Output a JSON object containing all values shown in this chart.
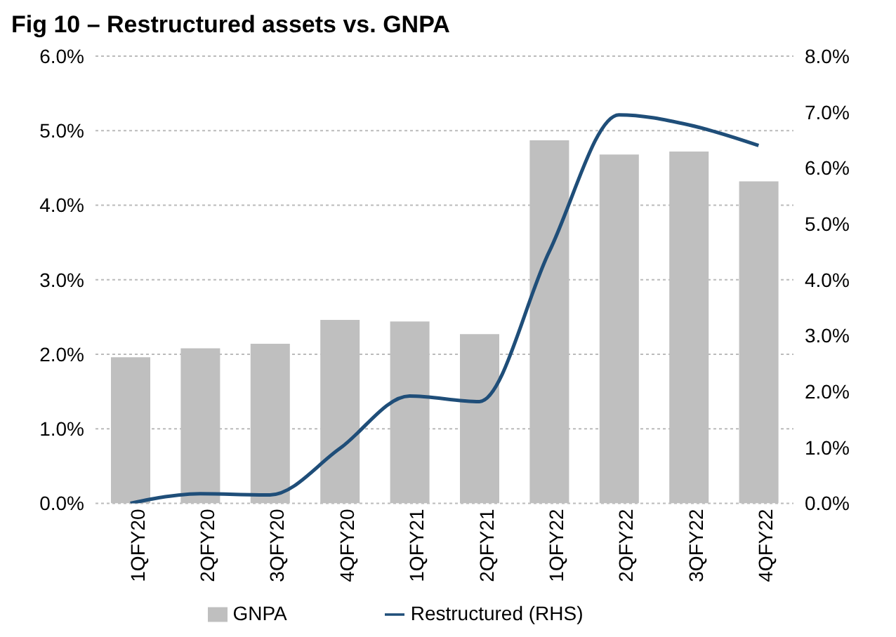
{
  "chart_data": {
    "type": "bar",
    "title": "Fig 10 – Restructured assets vs. GNPA",
    "categories": [
      "1QFY20",
      "2QFY20",
      "3QFY20",
      "4QFY20",
      "1QFY21",
      "2QFY21",
      "1QFY22",
      "2QFY22",
      "3QFY22",
      "4QFY22"
    ],
    "series": [
      {
        "name": "GNPA",
        "color": "#bfbfbf",
        "values": [
          1.96,
          2.08,
          2.14,
          2.46,
          2.44,
          2.27,
          4.87,
          4.68,
          4.72,
          4.32
        ]
      },
      {
        "name": "Restructured (RHS)",
        "type": "line",
        "axis": "y2",
        "color": "#1f4e79",
        "values": [
          0.0,
          0.17,
          0.15,
          0.98,
          1.92,
          1.82,
          4.5,
          6.95,
          6.77,
          6.4
        ]
      }
    ],
    "ylim": [
      0,
      6
    ],
    "yticks": [
      {
        "value": 0,
        "label": "0.0%"
      },
      {
        "value": 1,
        "label": "1.0%"
      },
      {
        "value": 2,
        "label": "2.0%"
      },
      {
        "value": 3,
        "label": "3.0%"
      },
      {
        "value": 4,
        "label": "4.0%"
      },
      {
        "value": 5,
        "label": "5.0%"
      },
      {
        "value": 6,
        "label": "6.0%"
      }
    ],
    "y2lim": [
      0,
      8
    ],
    "y2ticks": [
      {
        "value": 0,
        "label": "0.0%"
      },
      {
        "value": 1,
        "label": "1.0%"
      },
      {
        "value": 2,
        "label": "2.0%"
      },
      {
        "value": 3,
        "label": "3.0%"
      },
      {
        "value": 4,
        "label": "4.0%"
      },
      {
        "value": 5,
        "label": "5.0%"
      },
      {
        "value": 6,
        "label": "6.0%"
      },
      {
        "value": 7,
        "label": "7.0%"
      },
      {
        "value": 8,
        "label": "8.0%"
      }
    ],
    "grid": "y",
    "legend": "bottom",
    "marker": "none"
  }
}
